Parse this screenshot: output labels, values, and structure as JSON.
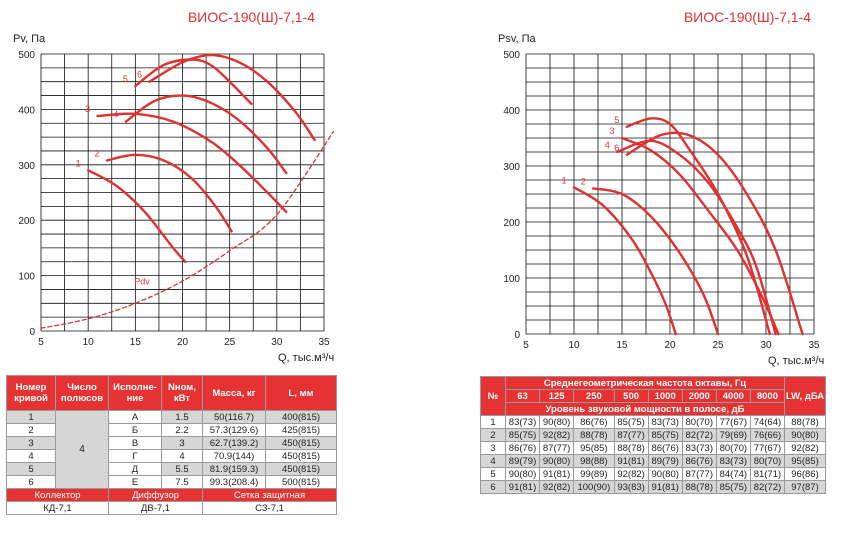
{
  "left_title": "ВИОС-190(Ш)-7,1-4",
  "right_title": "ВИОС-190(Ш)-7,1-4",
  "chart_data": [
    {
      "type": "line",
      "title": "ВИОС-190(Ш)-7,1-4",
      "ylabel": "Pv, Па",
      "xlabel": "Q, тыс.м³/ч",
      "xlim": [
        5,
        35
      ],
      "ylim": [
        0,
        500
      ],
      "xticks": [
        5,
        10,
        15,
        20,
        25,
        30,
        35
      ],
      "yticks": [
        0,
        100,
        200,
        300,
        400,
        500
      ],
      "grid": true,
      "series": [
        {
          "name": "1",
          "x": [
            10,
            13,
            16,
            19,
            20.3
          ],
          "y": [
            290,
            262,
            215,
            150,
            125
          ]
        },
        {
          "name": "2",
          "x": [
            12,
            15,
            18,
            21,
            23.5,
            25.2
          ],
          "y": [
            308,
            318,
            308,
            275,
            225,
            180
          ]
        },
        {
          "name": "3",
          "x": [
            11,
            15,
            19,
            23,
            26,
            29,
            31
          ],
          "y": [
            388,
            392,
            378,
            342,
            300,
            250,
            215
          ]
        },
        {
          "name": "4",
          "x": [
            14,
            17,
            20,
            23,
            26,
            29,
            31
          ],
          "y": [
            378,
            415,
            425,
            412,
            380,
            330,
            285
          ]
        },
        {
          "name": "5",
          "x": [
            15,
            18,
            21,
            23,
            25,
            27.3
          ],
          "y": [
            442,
            480,
            490,
            480,
            450,
            410
          ]
        },
        {
          "name": "6",
          "x": [
            16.5,
            20,
            23,
            26,
            29,
            32,
            34
          ],
          "y": [
            450,
            485,
            498,
            485,
            450,
            395,
            345
          ]
        },
        {
          "name": "Pdv",
          "x": [
            5,
            10,
            15,
            20,
            25,
            30,
            36
          ],
          "y": [
            5,
            22,
            50,
            90,
            145,
            210,
            360
          ]
        }
      ],
      "labels": [
        "1",
        "2",
        "3",
        "4",
        "5",
        "6",
        "Pdv"
      ]
    },
    {
      "type": "line",
      "title": "ВИОС-190(Ш)-7,1-4",
      "ylabel": "Psv, Па",
      "xlabel": "Q, тыс.м³/ч",
      "xlim": [
        5,
        35
      ],
      "ylim": [
        0,
        500
      ],
      "xticks": [
        5,
        10,
        15,
        20,
        25,
        30,
        35
      ],
      "yticks": [
        0,
        100,
        200,
        300,
        400,
        500
      ],
      "grid": true,
      "series": [
        {
          "name": "1",
          "x": [
            10,
            13,
            16,
            18,
            19.5,
            20.6
          ],
          "y": [
            262,
            230,
            170,
            110,
            55,
            0
          ]
        },
        {
          "name": "2",
          "x": [
            12,
            15,
            18,
            21,
            23.5,
            25
          ],
          "y": [
            260,
            250,
            210,
            145,
            70,
            0
          ]
        },
        {
          "name": "3",
          "x": [
            15,
            18,
            21,
            24,
            27,
            29.5,
            31.3
          ],
          "y": [
            350,
            328,
            285,
            220,
            150,
            70,
            0
          ]
        },
        {
          "name": "4",
          "x": [
            14.5,
            18,
            21,
            24,
            27,
            29,
            31
          ],
          "y": [
            325,
            345,
            320,
            270,
            190,
            120,
            0
          ]
        },
        {
          "name": "5",
          "x": [
            15.5,
            18,
            20,
            22,
            25,
            28,
            30.4
          ],
          "y": [
            370,
            385,
            375,
            330,
            250,
            140,
            0
          ]
        },
        {
          "name": "6",
          "x": [
            15.5,
            19,
            22,
            25,
            28,
            31,
            33.8
          ],
          "y": [
            320,
            355,
            355,
            320,
            250,
            150,
            0
          ]
        }
      ],
      "labels": [
        "1",
        "2",
        "3",
        "4",
        "5",
        "6"
      ]
    }
  ],
  "left_table": {
    "headers": [
      "Номер кривой",
      "Число полюсов",
      "Исполне-ние",
      "Nном, кВт",
      "Масса, кг",
      "L, мм"
    ],
    "poles": "4",
    "rows": [
      [
        "1",
        "А",
        "1.5",
        "50(116.7)",
        "400(815)"
      ],
      [
        "2",
        "Б",
        "2.2",
        "57.3(129.6)",
        "425(815)"
      ],
      [
        "3",
        "В",
        "3",
        "62.7(139.2)",
        "450(815)"
      ],
      [
        "4",
        "Г",
        "4",
        "70.9(144)",
        "450(815)"
      ],
      [
        "5",
        "Д",
        "5.5",
        "81.9(159.3)",
        "450(815)"
      ],
      [
        "6",
        "Е",
        "7.5",
        "99.3(208.4)",
        "500(815)"
      ]
    ],
    "acc_headers": [
      "Коллектор",
      "Диффузор",
      "Сетка защитная"
    ],
    "acc_values": [
      "КД-7,1",
      "ДВ-7,1",
      "СЗ-7,1"
    ]
  },
  "right_table": {
    "num_header": "№",
    "freq_title": "Среднегеометрическая частота октавы, Гц",
    "freqs": [
      "63",
      "125",
      "250",
      "500",
      "1000",
      "2000",
      "4000",
      "8000"
    ],
    "lw_header": "LW, дБА",
    "level_title": "Уровень звуковой мощности в полосе, дБ",
    "rows": [
      [
        "1",
        "83(73)",
        "90(80)",
        "86(76)",
        "85(75)",
        "83(73)",
        "80(70)",
        "77(67)",
        "74(64)",
        "88(78)"
      ],
      [
        "2",
        "85(75)",
        "92(82)",
        "88(78)",
        "87(77)",
        "85(75)",
        "82(72)",
        "79(69)",
        "76(66)",
        "90(80)"
      ],
      [
        "3",
        "86(76)",
        "87(77)",
        "95(85)",
        "88(78)",
        "86(76)",
        "83(73)",
        "80(70)",
        "77(67)",
        "92(82)"
      ],
      [
        "4",
        "89(79)",
        "90(80)",
        "98(88)",
        "91(81)",
        "89(79)",
        "86(76)",
        "83(73)",
        "80(70)",
        "95(85)"
      ],
      [
        "5",
        "90(80)",
        "91(81)",
        "99(89)",
        "92(82)",
        "90(80)",
        "87(77)",
        "84(74)",
        "81(71)",
        "96(86)"
      ],
      [
        "6",
        "91(81)",
        "92(82)",
        "100(90)",
        "93(83)",
        "91(81)",
        "88(78)",
        "85(75)",
        "82(72)",
        "97(87)"
      ]
    ]
  }
}
